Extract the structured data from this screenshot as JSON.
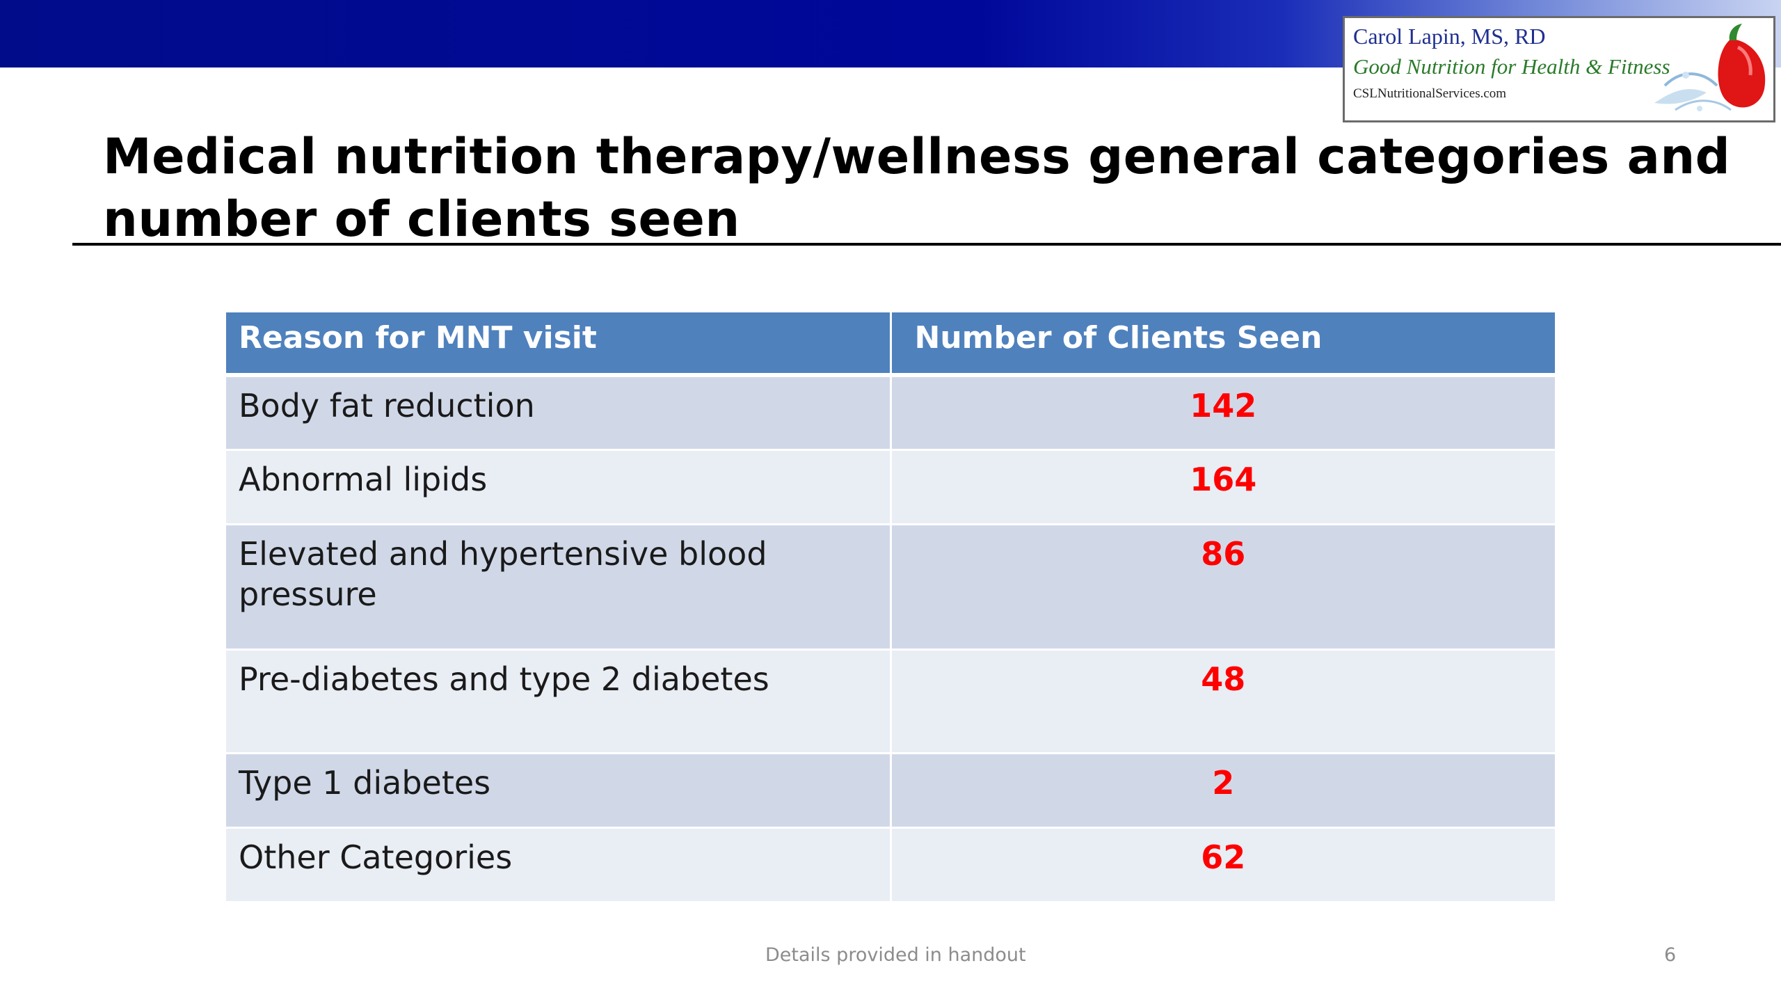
{
  "logo": {
    "name": "Carol Lapin, MS, RD",
    "tagline": "Good Nutrition for Health & Fitness",
    "website": "CSLNutritionalServices.com"
  },
  "slide": {
    "title": "Medical nutrition therapy/wellness general categories and number of clients seen",
    "footer": "Details provided in handout",
    "page_number": "6"
  },
  "table": {
    "headers": [
      "Reason for MNT visit",
      "Number of Clients Seen"
    ],
    "rows": [
      {
        "reason": "Body fat reduction",
        "count": "142"
      },
      {
        "reason": "Abnormal lipids",
        "count": "164"
      },
      {
        "reason": "Elevated and hypertensive blood pressure",
        "count": "86"
      },
      {
        "reason": "Pre-diabetes and type 2 diabetes",
        "count": "48"
      },
      {
        "reason": "Type 1 diabetes",
        "count": "2"
      },
      {
        "reason": "Other Categories",
        "count": "62"
      }
    ]
  },
  "colors": {
    "header_band": "#000c8a",
    "table_header": "#4f81bd",
    "row_odd": "#d0d8e8",
    "row_even": "#e9edf4",
    "count_text": "#ff0000"
  }
}
